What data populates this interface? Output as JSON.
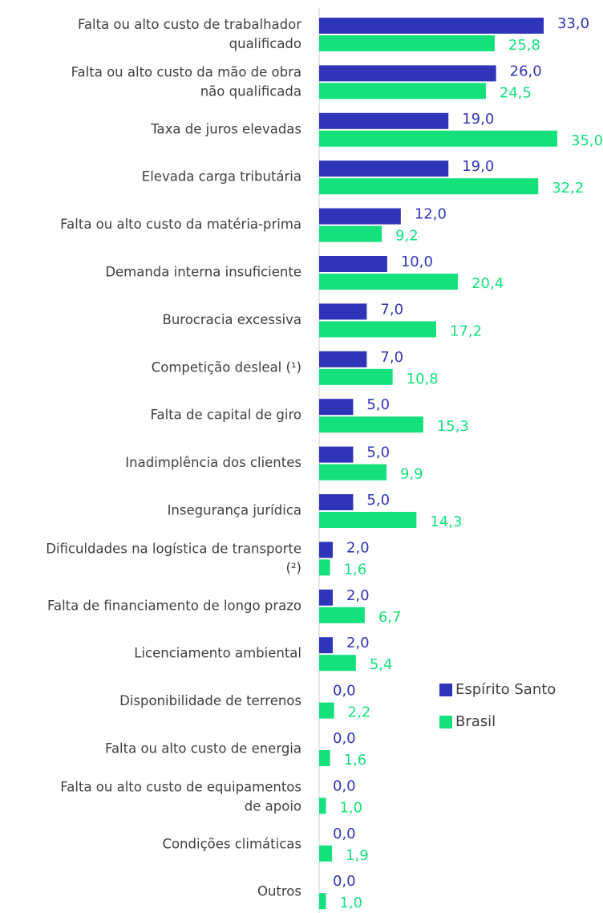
{
  "chart_data": {
    "type": "bar",
    "orientation": "horizontal",
    "categories": [
      "Falta ou alto custo de trabalhador\nqualificado",
      "Falta ou alto custo da mão de obra\nnão qualificada",
      "Taxa de juros elevadas",
      "Elevada carga tributária",
      "Falta ou alto custo da matéria-prima",
      "Demanda interna insuficiente",
      "Burocracia excessiva",
      "Competição desleal (¹)",
      "Falta de capital de giro",
      "Inadimplência dos clientes",
      "Insegurança jurídica",
      "Dificuldades na logística de transporte\n(²)",
      "Falta de financiamento de longo prazo",
      "Licenciamento ambiental",
      "Disponibilidade de terrenos",
      "Falta ou alto custo de energia",
      "Falta ou alto custo de equipamentos\nde apoio",
      "Condições climáticas",
      "Outros"
    ],
    "series": [
      {
        "name": "Espírito Santo",
        "color": "#2e35b8",
        "values": [
          33.0,
          26.0,
          19.0,
          19.0,
          12.0,
          10.0,
          7.0,
          7.0,
          5.0,
          5.0,
          5.0,
          2.0,
          2.0,
          2.0,
          0.0,
          0.0,
          0.0,
          0.0,
          0.0
        ],
        "value_labels": [
          "33,0",
          "26,0",
          "19,0",
          "19,0",
          "12,0",
          "10,0",
          "7,0",
          "7,0",
          "5,0",
          "5,0",
          "5,0",
          "2,0",
          "2,0",
          "2,0",
          "0,0",
          "0,0",
          "0,0",
          "0,0",
          "0,0"
        ]
      },
      {
        "name": "Brasil",
        "color": "#14e07c",
        "values": [
          25.8,
          24.5,
          35.0,
          32.2,
          9.2,
          20.4,
          17.2,
          10.8,
          15.3,
          9.9,
          14.3,
          1.6,
          6.7,
          5.4,
          2.2,
          1.6,
          1.0,
          1.9,
          1.0
        ],
        "value_labels": [
          "25,8",
          "24,5",
          "35,0",
          "32,2",
          "9,2",
          "20,4",
          "17,2",
          "10,8",
          "15,3",
          "9,9",
          "14,3",
          "1,6",
          "6,7",
          "5,4",
          "2,2",
          "1,6",
          "1,0",
          "1,9",
          "1,0"
        ]
      }
    ],
    "legend": "right"
  }
}
